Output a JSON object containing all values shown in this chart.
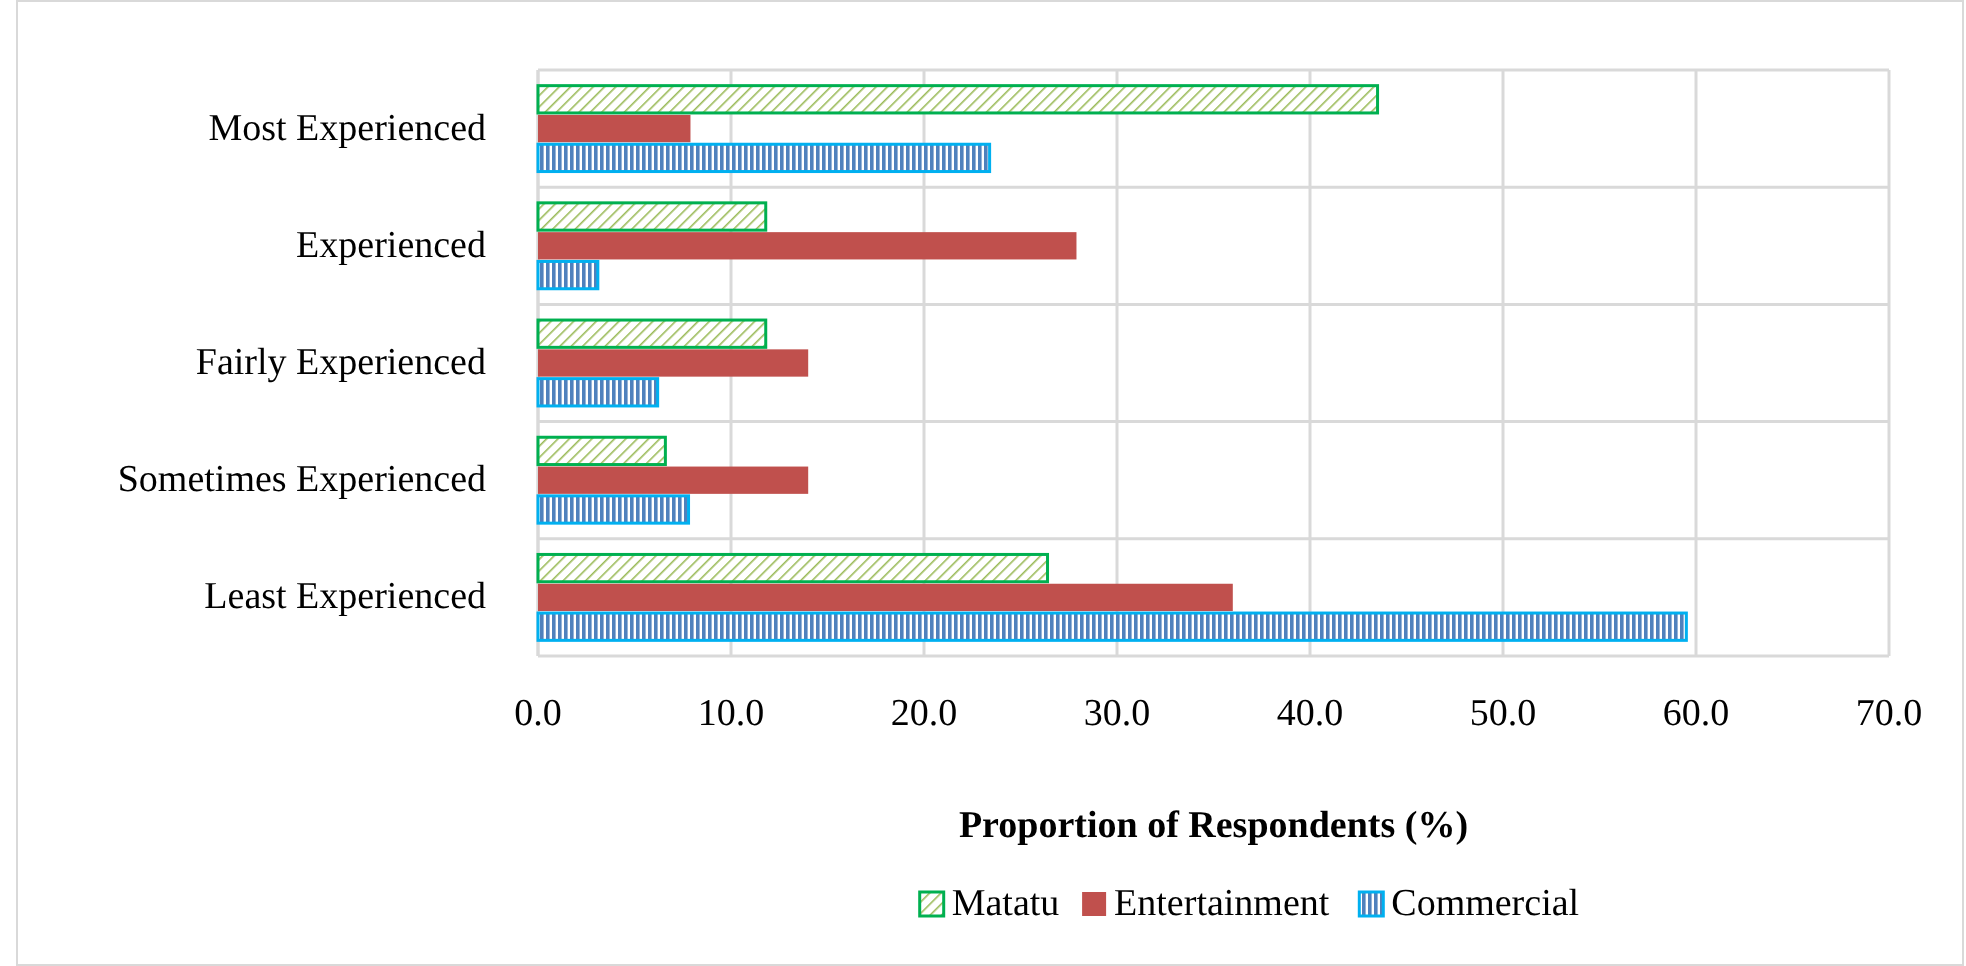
{
  "chart_data": {
    "type": "bar",
    "orientation": "horizontal",
    "xlabel": "Proportion of Respondents (%)",
    "categories": [
      "Most Experienced",
      "Experienced",
      "Fairly Experienced",
      "Sometimes Experienced",
      "Least Experienced"
    ],
    "series": [
      {
        "name": "Matatu",
        "color": "#00b050",
        "values": [
          43.5,
          11.8,
          11.8,
          6.6,
          26.4
        ]
      },
      {
        "name": "Entertainment",
        "color": "#c0504d",
        "values": [
          7.9,
          27.9,
          14.0,
          14.0,
          36.0
        ]
      },
      {
        "name": "Commercial",
        "color": "#00b0f0",
        "values": [
          23.4,
          3.1,
          6.2,
          7.8,
          59.5
        ]
      }
    ],
    "xlim": [
      0,
      70
    ],
    "xticks": [
      {
        "value": 0,
        "label": "0.0"
      },
      {
        "value": 10,
        "label": "10.0"
      },
      {
        "value": 20,
        "label": "20.0"
      },
      {
        "value": 30,
        "label": "30.0"
      },
      {
        "value": 40,
        "label": "40.0"
      },
      {
        "value": 50,
        "label": "50.0"
      },
      {
        "value": 60,
        "label": "60.0"
      },
      {
        "value": 70,
        "label": "70.0"
      }
    ],
    "grid": true,
    "legend": "bottom"
  }
}
